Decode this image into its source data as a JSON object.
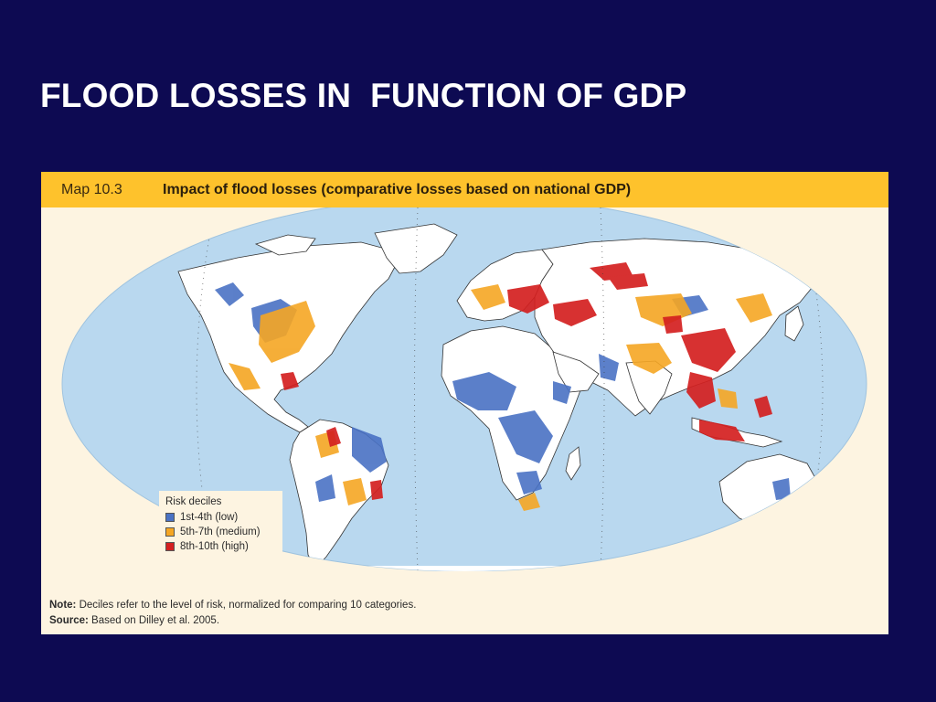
{
  "slide": {
    "title": "FLOOD LOSSES IN  FUNCTION OF GDP"
  },
  "figure": {
    "map_number": "Map 10.3",
    "map_title": "Impact of flood losses (comparative losses based on national GDP)",
    "legend": {
      "title": "Risk deciles",
      "items": [
        {
          "label": "1st-4th (low)",
          "color": "#4a72c4"
        },
        {
          "label": "5th-7th (medium)",
          "color": "#f5a623"
        },
        {
          "label": "8th-10th (high)",
          "color": "#d42020"
        }
      ]
    },
    "note_label": "Note:",
    "note_text": " Deciles refer to the level of risk, normalized for comparing 10 categories.",
    "source_label": "Source:",
    "source_text": " Based on Dilley et al. 2005."
  },
  "colors": {
    "background": "#0d0a52",
    "header_bar": "#fec22c",
    "figure_bg": "#fdf4e1",
    "ocean": "#b9d8ef",
    "land": "#ffffff"
  }
}
